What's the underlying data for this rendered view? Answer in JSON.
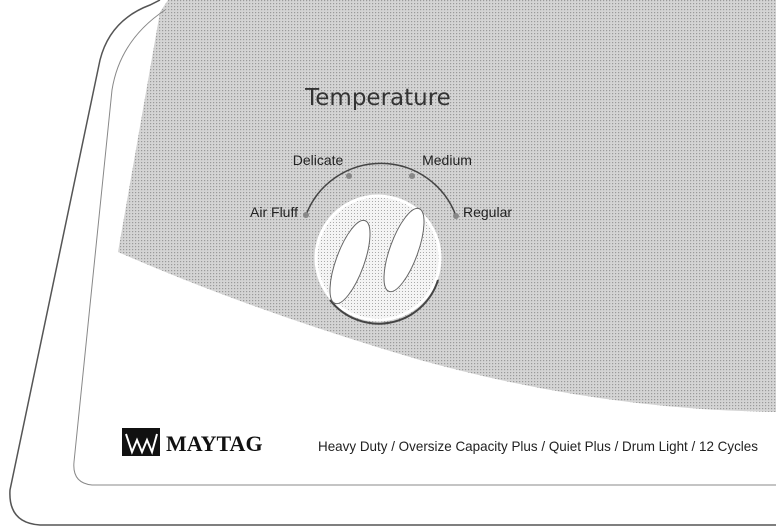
{
  "panel": {
    "dial_title": "Temperature",
    "settings": [
      "Air Fluff",
      "Delicate",
      "Medium",
      "Regular"
    ],
    "brand": "MAYTAG",
    "features": "Heavy Duty / Oversize Capacity Plus / Quiet Plus / Drum Light / 12 Cycles"
  }
}
